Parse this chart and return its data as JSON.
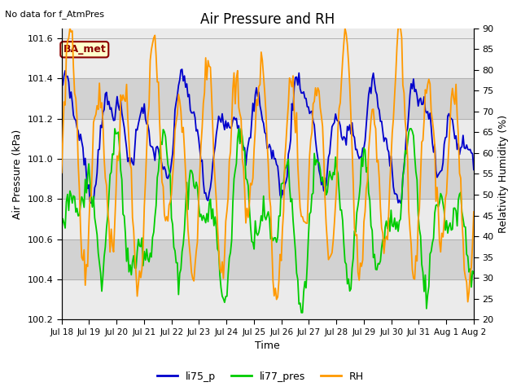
{
  "title": "Air Pressure and RH",
  "top_left_text": "No data for f_AtmPres",
  "box_label": "BA_met",
  "xlabel": "Time",
  "ylabel_left": "Air Pressure (kPa)",
  "ylabel_right": "Relativity Humidity (%)",
  "ylim_left": [
    100.2,
    101.65
  ],
  "ylim_right": [
    20,
    90
  ],
  "yticks_left": [
    100.2,
    100.4,
    100.6,
    100.8,
    101.0,
    101.2,
    101.4,
    101.6
  ],
  "yticks_right": [
    20,
    25,
    30,
    35,
    40,
    45,
    50,
    55,
    60,
    65,
    70,
    75,
    80,
    85,
    90
  ],
  "xtick_labels": [
    "Jul 18",
    "Jul 19",
    "Jul 20",
    "Jul 21",
    "Jul 22",
    "Jul 23",
    "Jul 24",
    "Jul 25",
    "Jul 26",
    "Jul 27",
    "Jul 28",
    "Jul 29",
    "Jul 30",
    "Jul 31",
    "Aug 1",
    "Aug 2"
  ],
  "color_li75": "#0000cc",
  "color_li77": "#00cc00",
  "color_rh": "#ff9900",
  "bg_light": "#ebebeb",
  "bg_dark": "#d2d2d2",
  "legend_items": [
    "li75_p",
    "li77_pres",
    "RH"
  ],
  "n_points": 350
}
